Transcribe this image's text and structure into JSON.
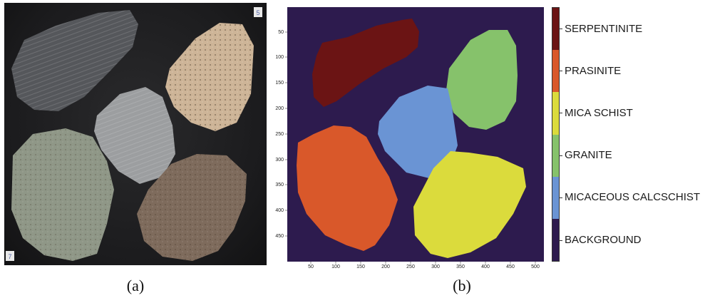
{
  "panels": {
    "a": {
      "caption": "(a)",
      "corner_mark_top": "5",
      "corner_mark_bottom": "7"
    },
    "b": {
      "caption": "(b)"
    }
  },
  "colors": {
    "background_class": "#2d1b4e",
    "serpentinite": "#6b1414",
    "prasinite": "#d9582a",
    "mica_schist": "#dbdb3c",
    "granite": "#86c26b",
    "micaceous_calcschist": "#6a94d4"
  },
  "legend": {
    "items": [
      {
        "label": "SERPENTINITE",
        "color": "#6b1414"
      },
      {
        "label": "PRASINITE",
        "color": "#d9582a"
      },
      {
        "label": "MICA SCHIST",
        "color": "#dbdb3c"
      },
      {
        "label": "GRANITE",
        "color": "#86c26b"
      },
      {
        "label": "MICACEOUS CALCSCHIST",
        "color": "#6a94d4"
      },
      {
        "label": "BACKGROUND",
        "color": "#2d1b4e"
      }
    ]
  },
  "axes": {
    "xticks": [
      "50",
      "100",
      "150",
      "200",
      "250",
      "300",
      "350",
      "400",
      "450",
      "500"
    ],
    "yticks": [
      "50",
      "100",
      "150",
      "200",
      "250",
      "300",
      "350",
      "400",
      "450"
    ]
  }
}
